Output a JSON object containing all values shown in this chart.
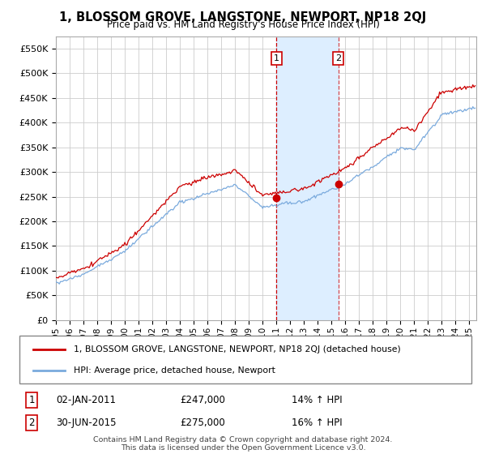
{
  "title": "1, BLOSSOM GROVE, LANGSTONE, NEWPORT, NP18 2QJ",
  "subtitle": "Price paid vs. HM Land Registry's House Price Index (HPI)",
  "ylim": [
    0,
    575000
  ],
  "yticks": [
    0,
    50000,
    100000,
    150000,
    200000,
    250000,
    300000,
    350000,
    400000,
    450000,
    500000,
    550000
  ],
  "ytick_labels": [
    "£0",
    "£50K",
    "£100K",
    "£150K",
    "£200K",
    "£250K",
    "£300K",
    "£350K",
    "£400K",
    "£450K",
    "£500K",
    "£550K"
  ],
  "x_start_year": 1995,
  "x_end_year": 2025,
  "xtick_years": [
    1995,
    1996,
    1997,
    1998,
    1999,
    2000,
    2001,
    2002,
    2003,
    2004,
    2005,
    2006,
    2007,
    2008,
    2009,
    2010,
    2011,
    2012,
    2013,
    2014,
    2015,
    2016,
    2017,
    2018,
    2019,
    2020,
    2021,
    2022,
    2023,
    2024,
    2025
  ],
  "transaction1": {
    "date": "02-JAN-2011",
    "price": 247000,
    "hpi_pct": "14%"
  },
  "transaction2": {
    "date": "30-JUN-2015",
    "price": 275000,
    "hpi_pct": "16%"
  },
  "legend_label_red": "1, BLOSSOM GROVE, LANGSTONE, NEWPORT, NP18 2QJ (detached house)",
  "legend_label_blue": "HPI: Average price, detached house, Newport",
  "footer": "Contains HM Land Registry data © Crown copyright and database right 2024.\nThis data is licensed under the Open Government Licence v3.0.",
  "red_color": "#cc0000",
  "blue_color": "#7aaadd",
  "shade_color": "#ddeeff",
  "background_color": "#ffffff",
  "grid_color": "#cccccc"
}
